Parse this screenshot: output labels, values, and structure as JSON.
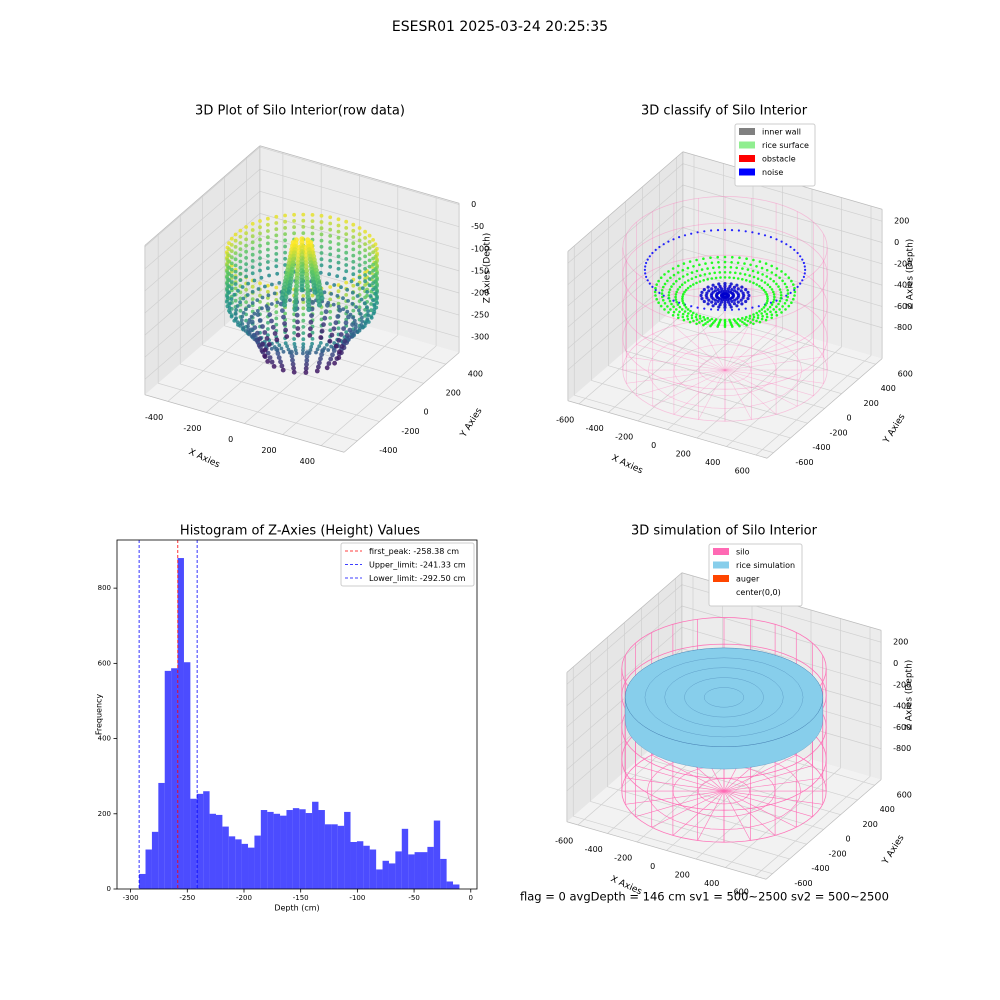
{
  "title": "ESESR01 2025-03-24 20:25:35",
  "footer": "flag = 0     avgDepth = 146 cm  sv1 = 500~2500  sv2 = 500~2500",
  "chart_data": [
    {
      "type": "scatter3d",
      "title": "3D Plot of Silo Interior(row data)",
      "xlabel": "X Axies",
      "ylabel": "Y Axies",
      "zlabel": "Z Axies (Depth)",
      "xlim": [
        -520,
        520
      ],
      "ylim": [
        -520,
        520
      ],
      "zlim": [
        -335,
        3
      ],
      "xticks": [
        -400,
        -200,
        0,
        200,
        400
      ],
      "yticks": [
        -400,
        -200,
        0,
        200,
        400
      ],
      "zticks": [
        0,
        -50,
        -100,
        -150,
        -200,
        -250,
        -300
      ]
    },
    {
      "type": "classify3d",
      "title": "3D classify of Silo Interior",
      "xlabel": "X Axies",
      "ylabel": "Y Axies",
      "zlabel": "Z Axies (Depth)",
      "xlim": [
        -675,
        675
      ],
      "ylim": [
        -675,
        675
      ],
      "zlim": [
        -1090,
        312
      ],
      "xticks": [
        -600,
        -400,
        -200,
        0,
        200,
        400,
        600
      ],
      "yticks": [
        -600,
        -400,
        -200,
        0,
        200,
        400,
        600
      ],
      "zticks": [
        200,
        0,
        -200,
        -400,
        -600,
        -800
      ],
      "legend": [
        {
          "name": "inner wall",
          "color": "#808080"
        },
        {
          "name": "rice surface",
          "color": "#90ee90"
        },
        {
          "name": "obstacle",
          "color": "#ff0000"
        },
        {
          "name": "noise",
          "color": "#0000ff"
        }
      ]
    },
    {
      "type": "histogram",
      "title": "Histogram of Z-Axies (Height) Values",
      "xlabel": "Depth (cm)",
      "ylabel": "Frequency",
      "color": "#0000ff",
      "bins": [
        -292.5,
        -286.85,
        -281.2,
        -275.55,
        -269.9,
        -264.25,
        -258.6,
        -252.95,
        -247.3,
        -241.65,
        -236.0,
        -230.35,
        -224.7,
        -219.05,
        -213.4,
        -207.75,
        -202.1,
        -196.45,
        -190.8,
        -185.15,
        -179.5,
        -173.85,
        -168.2,
        -162.55,
        -156.9,
        -151.25,
        -145.6,
        -139.95,
        -134.3,
        -128.65,
        -123.0,
        -117.35,
        -111.7,
        -106.05,
        -100.4,
        -94.75,
        -89.1,
        -83.45,
        -77.8,
        -72.15,
        -66.5,
        -60.85,
        -55.2,
        -49.55,
        -43.9,
        -38.25,
        -32.6,
        -26.95,
        -21.3,
        -15.65,
        -10.0
      ],
      "values": [
        40,
        105,
        152,
        282,
        580,
        587,
        880,
        603,
        240,
        253,
        260,
        200,
        197,
        166,
        140,
        132,
        120,
        110,
        142,
        210,
        205,
        200,
        195,
        210,
        215,
        212,
        202,
        232,
        210,
        172,
        172,
        168,
        205,
        125,
        127,
        115,
        105,
        52,
        75,
        68,
        100,
        160,
        92,
        98,
        98,
        112,
        182,
        80,
        20,
        12
      ],
      "xlim": [
        -312,
        5.5
      ],
      "ylim": [
        0,
        928
      ],
      "xticks": [
        -300,
        -250,
        -200,
        -150,
        -100,
        -50,
        0
      ],
      "yticks": [
        0,
        200,
        400,
        600,
        800
      ],
      "lines": [
        {
          "label": "first_peak: -258.38 cm",
          "value": -258.38,
          "color": "#ff0000"
        },
        {
          "label": "Upper_limit: -241.33 cm",
          "value": -241.33,
          "color": "#0000ff"
        },
        {
          "label": "Lower_limit: -292.50 cm",
          "value": -292.5,
          "color": "#0000ff"
        }
      ]
    },
    {
      "type": "surface3d",
      "title": "3D simulation of Silo Interior",
      "xlabel": "X Axies",
      "ylabel": "Y Axies",
      "zlabel": "Z Axies (Depth)",
      "xlim": [
        -675,
        675
      ],
      "ylim": [
        -675,
        675
      ],
      "zlim": [
        -1090,
        312
      ],
      "xticks": [
        -600,
        -400,
        -200,
        0,
        200,
        400,
        600
      ],
      "yticks": [
        -600,
        -400,
        -200,
        0,
        200,
        400,
        600
      ],
      "zticks": [
        200,
        0,
        -200,
        -400,
        -600,
        -800
      ],
      "legend": [
        {
          "name": "silo",
          "color": "#ff69b4"
        },
        {
          "name": "rice simulation",
          "color": "#87ceeb"
        },
        {
          "name": "auger",
          "color": "#ff4500"
        },
        {
          "name": "center(0,0)"
        }
      ]
    }
  ]
}
